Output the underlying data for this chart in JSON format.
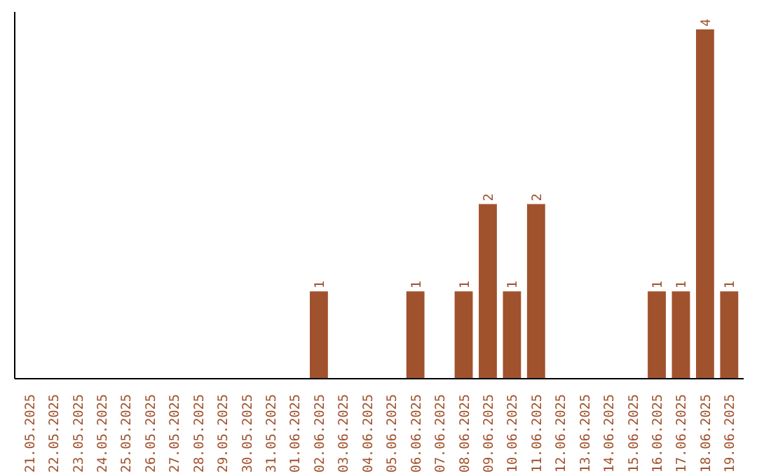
{
  "chart_data": {
    "type": "bar",
    "categories": [
      "21.05.2025",
      "22.05.2025",
      "23.05.2025",
      "24.05.2025",
      "25.05.2025",
      "26.05.2025",
      "27.05.2025",
      "28.05.2025",
      "29.05.2025",
      "30.05.2025",
      "31.05.2025",
      "01.06.2025",
      "02.06.2025",
      "03.06.2025",
      "04.06.2025",
      "05.06.2025",
      "06.06.2025",
      "07.06.2025",
      "08.06.2025",
      "09.06.2025",
      "10.06.2025",
      "11.06.2025",
      "12.06.2025",
      "13.06.2025",
      "14.06.2025",
      "15.06.2025",
      "16.06.2025",
      "17.06.2025",
      "18.06.2025",
      "19.06.2025"
    ],
    "values": [
      null,
      null,
      null,
      null,
      null,
      null,
      null,
      null,
      null,
      null,
      null,
      null,
      1,
      null,
      null,
      null,
      1,
      null,
      1,
      2,
      1,
      2,
      null,
      null,
      null,
      null,
      1,
      1,
      4,
      1
    ],
    "data_labels": true,
    "color": "#a0522d",
    "ylim": [
      0,
      4.2
    ],
    "tick_labels": "x"
  }
}
